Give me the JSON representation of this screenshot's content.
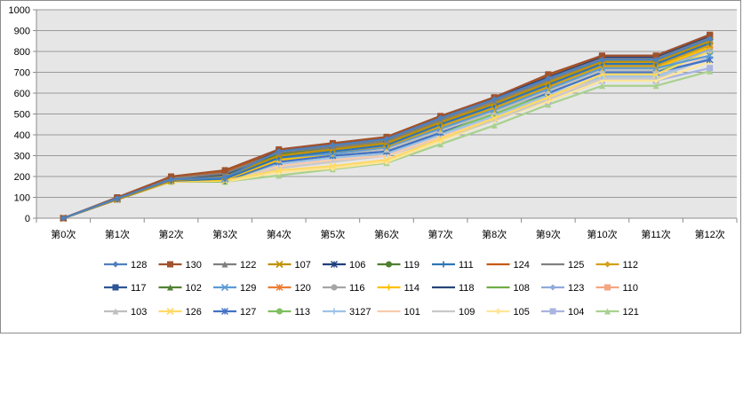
{
  "chart_data": {
    "type": "line",
    "title": "",
    "xlabel": "",
    "ylabel": "",
    "ylim": [
      0,
      1000
    ],
    "ytick_step": 100,
    "grid": true,
    "legend_position": "bottom",
    "plot_background": "#e6e6e6",
    "categories": [
      "第0次",
      "第1次",
      "第2次",
      "第3次",
      "第4次",
      "第5次",
      "第6次",
      "第7次",
      "第8次",
      "第9次",
      "第10次",
      "第11次",
      "第12次"
    ],
    "series": [
      {
        "name": "128",
        "color": "#4f81bd",
        "marker": "diamond",
        "values": [
          0,
          95,
          185,
          195,
          320,
          350,
          380,
          480,
          570,
          670,
          760,
          760,
          860
        ]
      },
      {
        "name": "130",
        "color": "#a0522d",
        "marker": "square",
        "values": [
          0,
          100,
          200,
          230,
          330,
          360,
          390,
          490,
          580,
          690,
          780,
          780,
          880
        ]
      },
      {
        "name": "122",
        "color": "#7f7f7f",
        "marker": "triangle",
        "values": [
          0,
          95,
          190,
          215,
          315,
          345,
          375,
          475,
          565,
          670,
          765,
          765,
          865
        ]
      },
      {
        "name": "107",
        "color": "#c09000",
        "marker": "x",
        "values": [
          0,
          90,
          180,
          200,
          300,
          330,
          360,
          460,
          550,
          650,
          750,
          750,
          850
        ]
      },
      {
        "name": "106",
        "color": "#1f3f7f",
        "marker": "star",
        "values": [
          0,
          95,
          190,
          210,
          320,
          350,
          380,
          480,
          575,
          675,
          770,
          770,
          870
        ]
      },
      {
        "name": "119",
        "color": "#4f7f2f",
        "marker": "circle",
        "values": [
          0,
          95,
          185,
          205,
          310,
          345,
          375,
          475,
          570,
          675,
          770,
          770,
          870
        ]
      },
      {
        "name": "111",
        "color": "#2e75b6",
        "marker": "plus",
        "values": [
          0,
          90,
          180,
          190,
          290,
          320,
          350,
          450,
          540,
          640,
          740,
          740,
          840
        ]
      },
      {
        "name": "124",
        "color": "#c55a11",
        "marker": "none",
        "values": [
          0,
          95,
          190,
          220,
          325,
          355,
          385,
          485,
          575,
          680,
          775,
          775,
          875
        ]
      },
      {
        "name": "125",
        "color": "#808080",
        "marker": "none",
        "values": [
          0,
          95,
          185,
          210,
          310,
          340,
          370,
          470,
          560,
          660,
          760,
          760,
          860
        ]
      },
      {
        "name": "112",
        "color": "#d4a017",
        "marker": "diamond",
        "values": [
          0,
          90,
          180,
          195,
          290,
          320,
          345,
          440,
          530,
          630,
          730,
          730,
          830
        ]
      },
      {
        "name": "117",
        "color": "#2f5597",
        "marker": "square",
        "values": [
          0,
          95,
          190,
          210,
          320,
          350,
          380,
          480,
          575,
          680,
          775,
          775,
          875
        ]
      },
      {
        "name": "102",
        "color": "#548235",
        "marker": "triangle",
        "values": [
          0,
          95,
          185,
          205,
          310,
          340,
          370,
          470,
          565,
          670,
          765,
          765,
          865
        ]
      },
      {
        "name": "129",
        "color": "#5b9bd5",
        "marker": "x",
        "values": [
          0,
          90,
          180,
          190,
          290,
          310,
          340,
          430,
          520,
          620,
          720,
          720,
          780
        ]
      },
      {
        "name": "120",
        "color": "#ed7d31",
        "marker": "star",
        "values": [
          0,
          90,
          180,
          190,
          290,
          320,
          350,
          450,
          540,
          640,
          740,
          740,
          830
        ]
      },
      {
        "name": "116",
        "color": "#a5a5a5",
        "marker": "circle",
        "values": [
          0,
          90,
          180,
          195,
          300,
          330,
          360,
          460,
          555,
          660,
          755,
          755,
          855
        ]
      },
      {
        "name": "114",
        "color": "#ffc000",
        "marker": "plus",
        "values": [
          0,
          90,
          180,
          185,
          280,
          310,
          340,
          430,
          520,
          620,
          720,
          720,
          820
        ]
      },
      {
        "name": "118",
        "color": "#264478",
        "marker": "none",
        "values": [
          0,
          95,
          190,
          215,
          320,
          355,
          385,
          485,
          580,
          685,
          780,
          780,
          880
        ]
      },
      {
        "name": "108",
        "color": "#70ad47",
        "marker": "none",
        "values": [
          0,
          95,
          185,
          200,
          305,
          335,
          365,
          465,
          560,
          665,
          760,
          760,
          860
        ]
      },
      {
        "name": "123",
        "color": "#8faadc",
        "marker": "diamond",
        "values": [
          0,
          90,
          180,
          190,
          280,
          310,
          340,
          430,
          520,
          620,
          720,
          720,
          810
        ]
      },
      {
        "name": "110",
        "color": "#f4a582",
        "marker": "square",
        "values": [
          0,
          95,
          190,
          230,
          310,
          340,
          370,
          460,
          550,
          650,
          740,
          740,
          830
        ]
      },
      {
        "name": "103",
        "color": "#bfbfbf",
        "marker": "triangle",
        "values": [
          0,
          90,
          180,
          185,
          280,
          310,
          330,
          420,
          510,
          610,
          710,
          710,
          810
        ]
      },
      {
        "name": "126",
        "color": "#ffd966",
        "marker": "x",
        "values": [
          0,
          90,
          175,
          180,
          230,
          250,
          280,
          380,
          480,
          580,
          690,
          690,
          800
        ]
      },
      {
        "name": "127",
        "color": "#4472c4",
        "marker": "star",
        "values": [
          0,
          90,
          180,
          180,
          270,
          300,
          320,
          410,
          520,
          600,
          700,
          700,
          760
        ]
      },
      {
        "name": "113",
        "color": "#7fbf5f",
        "marker": "circle",
        "values": [
          0,
          90,
          175,
          175,
          270,
          300,
          320,
          410,
          500,
          600,
          700,
          700,
          800
        ]
      },
      {
        "name": "3127",
        "color": "#9dc3e6",
        "marker": "plus",
        "values": [
          0,
          90,
          175,
          180,
          260,
          290,
          310,
          400,
          490,
          590,
          680,
          680,
          770
        ]
      },
      {
        "name": "101",
        "color": "#f8cbad",
        "marker": "none",
        "values": [
          0,
          90,
          175,
          180,
          250,
          280,
          300,
          390,
          480,
          580,
          680,
          680,
          780
        ]
      },
      {
        "name": "109",
        "color": "#c9c9c9",
        "marker": "none",
        "values": [
          0,
          90,
          175,
          180,
          240,
          270,
          300,
          380,
          470,
          570,
          670,
          670,
          770
        ]
      },
      {
        "name": "105",
        "color": "#ffe699",
        "marker": "diamond",
        "values": [
          0,
          90,
          175,
          175,
          220,
          240,
          270,
          370,
          470,
          560,
          660,
          660,
          750
        ]
      },
      {
        "name": "104",
        "color": "#a9b4e0",
        "marker": "square",
        "values": [
          0,
          100,
          185,
          185,
          270,
          300,
          320,
          400,
          475,
          560,
          660,
          660,
          720
        ]
      },
      {
        "name": "121",
        "color": "#a9d18e",
        "marker": "triangle",
        "values": [
          0,
          90,
          175,
          175,
          205,
          235,
          265,
          355,
          445,
          545,
          635,
          635,
          705
        ]
      }
    ]
  }
}
